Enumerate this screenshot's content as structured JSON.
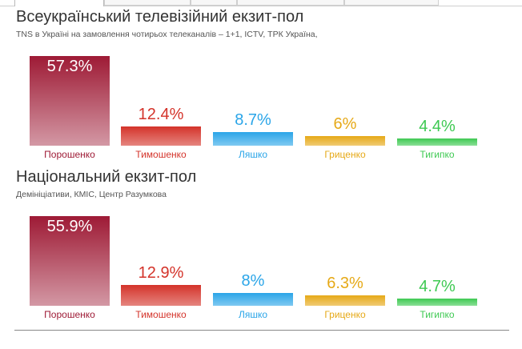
{
  "chart_data": [
    {
      "type": "bar",
      "title": "Всеукраїнський телевізійний екзит-пол",
      "subtitle": "TNS в Україні на замовлення чотирьох телеканалів – 1+1, ICTV, ТРК Україна,",
      "categories": [
        "Порошенко",
        "Тимошенко",
        "Ляшко",
        "Гриценко",
        "Тигипко"
      ],
      "values": [
        57.3,
        12.4,
        8.7,
        6.0,
        4.4
      ],
      "value_labels": [
        "57.3%",
        "12.4%",
        "8.7%",
        "6%",
        "4.4%"
      ],
      "colors": [
        "#9e1a35",
        "#d4332a",
        "#2aa5e8",
        "#e6a917",
        "#3ec952"
      ],
      "ylim": [
        0,
        57.3
      ],
      "grid": false
    },
    {
      "type": "bar",
      "title": "Національний екзит-пол",
      "subtitle": "Демініціативи, КМІС, Центр Разумкова",
      "categories": [
        "Порошенко",
        "Тимошенко",
        "Ляшко",
        "Гриценко",
        "Тигипко"
      ],
      "values": [
        55.9,
        12.9,
        8.0,
        6.3,
        4.7
      ],
      "value_labels": [
        "55.9%",
        "12.9%",
        "8%",
        "6.3%",
        "4.7%"
      ],
      "colors": [
        "#9e1a35",
        "#d4332a",
        "#2aa5e8",
        "#e6a917",
        "#3ec952"
      ],
      "ylim": [
        0,
        55.9
      ],
      "grid": false
    }
  ]
}
